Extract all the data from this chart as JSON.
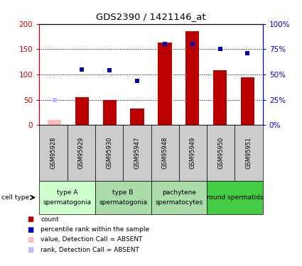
{
  "title": "GDS2390 / 1421146_at",
  "samples": [
    "GSM95928",
    "GSM95929",
    "GSM95930",
    "GSM95947",
    "GSM95948",
    "GSM95949",
    "GSM95950",
    "GSM95951"
  ],
  "counts": [
    10,
    55,
    50,
    33,
    163,
    185,
    108,
    95
  ],
  "ranks": [
    50,
    110,
    109,
    87,
    160,
    161,
    150,
    142
  ],
  "absent_count_indices": [
    0
  ],
  "absent_rank_indices": [
    0
  ],
  "cell_groups": [
    {
      "label": "type A",
      "sublabel": "spermatogonia",
      "start": 0,
      "end": 2,
      "color": "#ccffcc"
    },
    {
      "label": "type B",
      "sublabel": "spermatogonia",
      "start": 2,
      "end": 4,
      "color": "#aaddaa"
    },
    {
      "label": "pachytene",
      "sublabel": "spermatocytes",
      "start": 4,
      "end": 6,
      "color": "#aaddaa"
    },
    {
      "label": "round spermatids",
      "sublabel": "",
      "start": 6,
      "end": 8,
      "color": "#44cc44"
    }
  ],
  "ylim_left": [
    0,
    200
  ],
  "ylim_right": [
    0,
    100
  ],
  "yticks_left": [
    0,
    50,
    100,
    150,
    200
  ],
  "yticks_right": [
    0,
    25,
    50,
    75,
    100
  ],
  "ytick_labels_left": [
    "0",
    "50",
    "100",
    "150",
    "200"
  ],
  "ytick_labels_right": [
    "0%",
    "25%",
    "50%",
    "75%",
    "100%"
  ],
  "bar_color_normal": "#bb0000",
  "bar_color_absent": "#ffbbbb",
  "rank_color_normal": "#0000bb",
  "rank_color_absent": "#bbbbff",
  "sample_bg": "#cccccc",
  "legend_items": [
    {
      "color": "#bb0000",
      "label": "count"
    },
    {
      "color": "#0000bb",
      "label": "percentile rank within the sample"
    },
    {
      "color": "#ffbbbb",
      "label": "value, Detection Call = ABSENT"
    },
    {
      "color": "#bbbbff",
      "label": "rank, Detection Call = ABSENT"
    }
  ]
}
